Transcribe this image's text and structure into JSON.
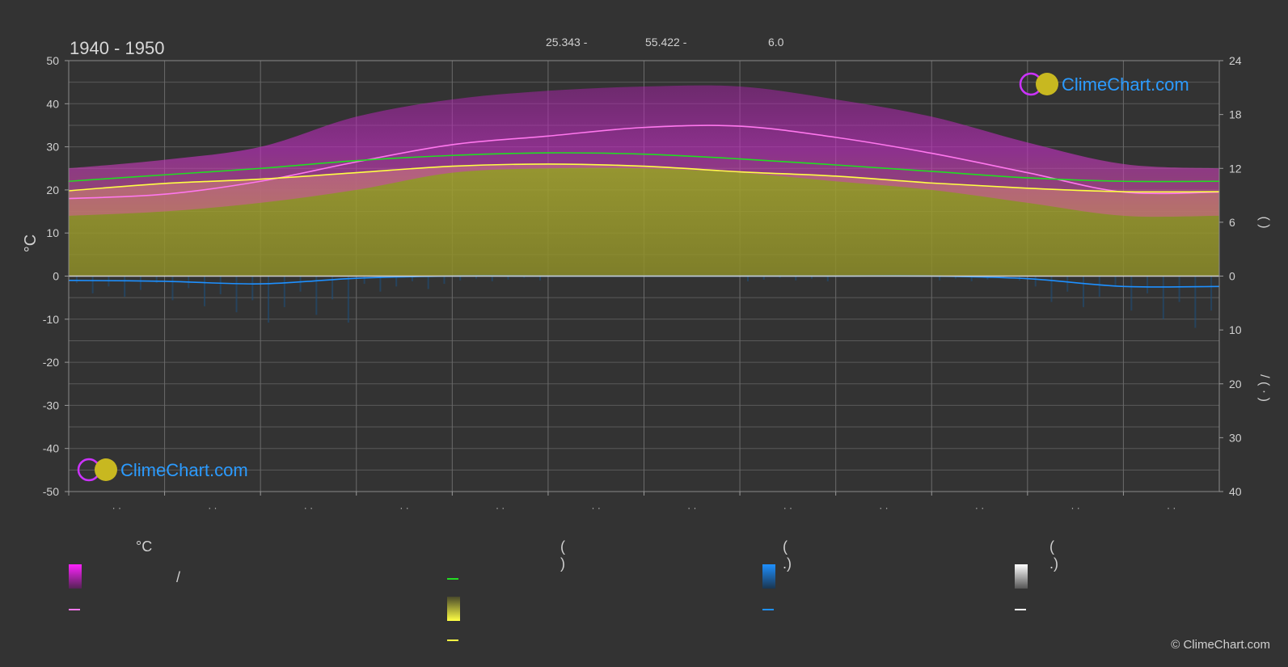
{
  "chart_data": {
    "type": "area",
    "title": "1940 - 1950",
    "header_stats": [
      "25.343 -",
      "55.422 -",
      "6.0"
    ],
    "ylabel_left": "°C",
    "ylim_left": [
      -50,
      50
    ],
    "yticks_left": [
      "50",
      "40",
      "30",
      "20",
      "10",
      "0",
      "-10",
      "-20",
      "-30",
      "-40",
      "-50"
    ],
    "yticks_right_top": [
      "24",
      "18",
      "12",
      "6",
      "0"
    ],
    "yticks_right_bottom": [
      "10",
      "20",
      "30",
      "40"
    ],
    "ylabel_right_top": "(   )",
    "ylabel_right_bottom": "/ (  ·  )",
    "x_months": 12,
    "x_tick_labels": [
      "· ·",
      "· ·",
      "· ·",
      "· ·",
      "· ·",
      "· ·",
      "· ·",
      "· ·",
      "· ·",
      "· ·",
      "· ·",
      "· ·"
    ],
    "series": [
      {
        "name": "",
        "color": "#ff77ee",
        "x": [
          0,
          1,
          2,
          3,
          4,
          5,
          6,
          7,
          8,
          9,
          10,
          11,
          12
        ],
        "values": [
          18.0,
          19.0,
          22.0,
          26.5,
          30.5,
          32.5,
          34.5,
          34.8,
          32.2,
          28.5,
          24.0,
          19.5,
          19.5
        ]
      },
      {
        "name": "",
        "color": "#22dd22",
        "x": [
          0,
          1,
          2,
          3,
          4,
          5,
          6,
          7,
          8,
          9,
          10,
          11,
          12
        ],
        "values": [
          22.0,
          23.5,
          25.0,
          26.8,
          28.0,
          28.6,
          28.3,
          27.2,
          25.8,
          24.3,
          22.8,
          22.0,
          22.0
        ]
      },
      {
        "name": "",
        "color": "#ffff44",
        "x": [
          0,
          1,
          2,
          3,
          4,
          5,
          6,
          7,
          8,
          9,
          10,
          11,
          12
        ],
        "values": [
          19.8,
          21.5,
          22.5,
          24.0,
          25.5,
          26.0,
          25.5,
          24.2,
          23.2,
          21.6,
          20.4,
          19.6,
          19.6
        ]
      },
      {
        "name": "",
        "color": "#1e90ff",
        "x": [
          0,
          1,
          2,
          3,
          4,
          5,
          6,
          7,
          8,
          9,
          10,
          11,
          12
        ],
        "values": [
          -1.0,
          -1.2,
          -1.8,
          -0.5,
          0.0,
          0.0,
          0.0,
          0.0,
          0.0,
          0.0,
          -0.6,
          -2.4,
          -2.4
        ]
      }
    ],
    "band_upper": [
      25,
      27,
      30,
      37,
      41,
      43,
      44,
      44,
      41,
      37,
      31,
      26,
      25
    ],
    "band_lower": [
      14,
      15,
      17,
      20,
      24,
      25,
      25,
      24,
      22,
      20,
      17,
      14,
      14
    ],
    "sunshine_hours_right": [
      9.5,
      10.3,
      10.8,
      11.5,
      12.2,
      12.5,
      12.2,
      11.6,
      11.1,
      10.4,
      9.8,
      9.4,
      9.4
    ],
    "grid": true,
    "colors": {
      "background": "#333333",
      "grid": "#5a5a5a",
      "band": "#c020c0",
      "sunshine_fill": "#9a9a2a",
      "temp_max": "#ff77ee",
      "daylight": "#22dd22",
      "sunshine": "#ffff44",
      "rain": "#1e90ff",
      "zero_line": "#cfcfcf"
    }
  },
  "branding": {
    "logo_text": "ClimeChart.com",
    "copyright": "© ClimeChart.com"
  },
  "legend": {
    "headers": [
      "°C",
      "(           )",
      "(    .)",
      "(    .)"
    ],
    "slash": "/"
  }
}
